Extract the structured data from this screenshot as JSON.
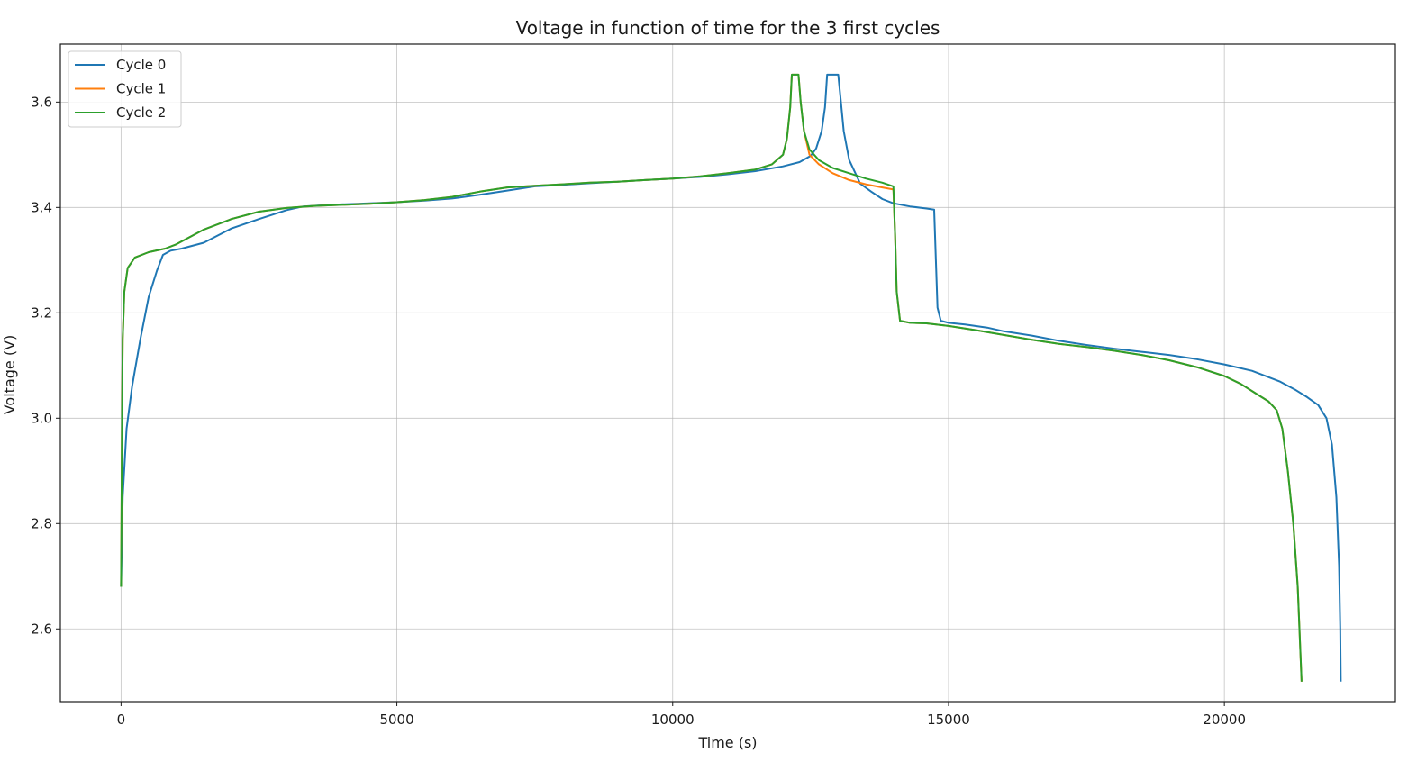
{
  "chart_data": {
    "type": "line",
    "title": "Voltage in function of time for the 3 first cycles",
    "xlabel": "Time (s)",
    "ylabel": "Voltage (V)",
    "xlim": [
      -1100,
      23100
    ],
    "ylim": [
      2.462,
      3.71
    ],
    "xticks": [
      0,
      5000,
      10000,
      15000,
      20000
    ],
    "yticks": [
      2.6,
      2.8,
      3.0,
      3.2,
      3.4,
      3.6
    ],
    "xtick_labels": [
      "0",
      "5000",
      "10000",
      "15000",
      "20000"
    ],
    "ytick_labels": [
      "2.6",
      "2.8",
      "3.0",
      "3.2",
      "3.4",
      "3.6"
    ],
    "grid": true,
    "legend_position": "top-left",
    "series": [
      {
        "name": "Cycle 0",
        "color": "#1f77b4",
        "points": [
          [
            0,
            2.68
          ],
          [
            30,
            2.85
          ],
          [
            100,
            2.98
          ],
          [
            200,
            3.06
          ],
          [
            350,
            3.15
          ],
          [
            500,
            3.23
          ],
          [
            650,
            3.28
          ],
          [
            760,
            3.31
          ],
          [
            900,
            3.318
          ],
          [
            1100,
            3.322
          ],
          [
            1500,
            3.333
          ],
          [
            2000,
            3.36
          ],
          [
            2500,
            3.378
          ],
          [
            3000,
            3.395
          ],
          [
            3300,
            3.402
          ],
          [
            3800,
            3.405
          ],
          [
            4500,
            3.408
          ],
          [
            5000,
            3.41
          ],
          [
            5500,
            3.413
          ],
          [
            6000,
            3.417
          ],
          [
            6500,
            3.424
          ],
          [
            7000,
            3.432
          ],
          [
            7500,
            3.44
          ],
          [
            8000,
            3.443
          ],
          [
            8500,
            3.446
          ],
          [
            9000,
            3.449
          ],
          [
            9500,
            3.452
          ],
          [
            10000,
            3.455
          ],
          [
            10500,
            3.458
          ],
          [
            11000,
            3.463
          ],
          [
            11500,
            3.469
          ],
          [
            12000,
            3.478
          ],
          [
            12300,
            3.486
          ],
          [
            12500,
            3.498
          ],
          [
            12600,
            3.512
          ],
          [
            12700,
            3.545
          ],
          [
            12760,
            3.59
          ],
          [
            12800,
            3.652
          ],
          [
            13000,
            3.652
          ],
          [
            13050,
            3.6
          ],
          [
            13100,
            3.545
          ],
          [
            13200,
            3.49
          ],
          [
            13400,
            3.445
          ],
          [
            13600,
            3.43
          ],
          [
            13800,
            3.416
          ],
          [
            14000,
            3.408
          ],
          [
            14300,
            3.402
          ],
          [
            14600,
            3.398
          ],
          [
            14740,
            3.396
          ],
          [
            14770,
            3.3
          ],
          [
            14800,
            3.21
          ],
          [
            14860,
            3.185
          ],
          [
            15000,
            3.181
          ],
          [
            15300,
            3.178
          ],
          [
            15700,
            3.172
          ],
          [
            16000,
            3.165
          ],
          [
            16500,
            3.157
          ],
          [
            17000,
            3.147
          ],
          [
            17500,
            3.139
          ],
          [
            18000,
            3.132
          ],
          [
            18500,
            3.126
          ],
          [
            19000,
            3.12
          ],
          [
            19500,
            3.112
          ],
          [
            20000,
            3.102
          ],
          [
            20500,
            3.09
          ],
          [
            21000,
            3.07
          ],
          [
            21300,
            3.053
          ],
          [
            21500,
            3.04
          ],
          [
            21700,
            3.025
          ],
          [
            21850,
            3.0
          ],
          [
            21950,
            2.95
          ],
          [
            22030,
            2.85
          ],
          [
            22080,
            2.72
          ],
          [
            22100,
            2.6
          ],
          [
            22110,
            2.5
          ]
        ]
      },
      {
        "name": "Cycle 1",
        "color": "#ff7f0e",
        "points": [
          [
            0,
            2.68
          ],
          [
            15,
            2.95
          ],
          [
            30,
            3.15
          ],
          [
            60,
            3.24
          ],
          [
            120,
            3.285
          ],
          [
            250,
            3.305
          ],
          [
            500,
            3.315
          ],
          [
            800,
            3.322
          ],
          [
            1000,
            3.33
          ],
          [
            1500,
            3.358
          ],
          [
            2000,
            3.378
          ],
          [
            2500,
            3.392
          ],
          [
            3000,
            3.399
          ],
          [
            3500,
            3.403
          ],
          [
            4000,
            3.405
          ],
          [
            4500,
            3.407
          ],
          [
            5000,
            3.41
          ],
          [
            5500,
            3.414
          ],
          [
            6000,
            3.42
          ],
          [
            6500,
            3.43
          ],
          [
            7000,
            3.438
          ],
          [
            7500,
            3.441
          ],
          [
            8000,
            3.444
          ],
          [
            8500,
            3.447
          ],
          [
            9000,
            3.449
          ],
          [
            9500,
            3.452
          ],
          [
            10000,
            3.455
          ],
          [
            10500,
            3.459
          ],
          [
            11000,
            3.465
          ],
          [
            11500,
            3.472
          ],
          [
            11800,
            3.482
          ],
          [
            12000,
            3.5
          ],
          [
            12070,
            3.53
          ],
          [
            12130,
            3.59
          ],
          [
            12160,
            3.652
          ],
          [
            12280,
            3.652
          ],
          [
            12320,
            3.6
          ],
          [
            12380,
            3.545
          ],
          [
            12480,
            3.5
          ],
          [
            12650,
            3.482
          ],
          [
            12900,
            3.465
          ],
          [
            13200,
            3.452
          ],
          [
            13500,
            3.444
          ],
          [
            13800,
            3.438
          ],
          [
            14000,
            3.434
          ],
          [
            14030,
            3.35
          ],
          [
            14060,
            3.24
          ],
          [
            14120,
            3.185
          ],
          [
            14300,
            3.181
          ],
          [
            14600,
            3.18
          ],
          [
            15000,
            3.175
          ],
          [
            15500,
            3.167
          ],
          [
            16000,
            3.158
          ],
          [
            16500,
            3.149
          ],
          [
            17000,
            3.141
          ],
          [
            17500,
            3.135
          ],
          [
            18000,
            3.128
          ],
          [
            18500,
            3.12
          ],
          [
            19000,
            3.11
          ],
          [
            19500,
            3.097
          ],
          [
            20000,
            3.08
          ],
          [
            20300,
            3.065
          ],
          [
            20600,
            3.045
          ],
          [
            20800,
            3.032
          ],
          [
            20950,
            3.015
          ],
          [
            21050,
            2.98
          ],
          [
            21150,
            2.9
          ],
          [
            21250,
            2.8
          ],
          [
            21330,
            2.68
          ],
          [
            21380,
            2.55
          ],
          [
            21400,
            2.5
          ]
        ]
      },
      {
        "name": "Cycle 2",
        "color": "#2ca02c",
        "points": [
          [
            0,
            2.68
          ],
          [
            15,
            2.95
          ],
          [
            30,
            3.15
          ],
          [
            60,
            3.24
          ],
          [
            120,
            3.285
          ],
          [
            250,
            3.305
          ],
          [
            500,
            3.315
          ],
          [
            800,
            3.322
          ],
          [
            1000,
            3.33
          ],
          [
            1500,
            3.358
          ],
          [
            2000,
            3.378
          ],
          [
            2500,
            3.392
          ],
          [
            3000,
            3.399
          ],
          [
            3500,
            3.403
          ],
          [
            4000,
            3.405
          ],
          [
            4500,
            3.407
          ],
          [
            5000,
            3.41
          ],
          [
            5500,
            3.414
          ],
          [
            6000,
            3.42
          ],
          [
            6500,
            3.43
          ],
          [
            7000,
            3.438
          ],
          [
            7500,
            3.441
          ],
          [
            8000,
            3.444
          ],
          [
            8500,
            3.447
          ],
          [
            9000,
            3.449
          ],
          [
            9500,
            3.452
          ],
          [
            10000,
            3.455
          ],
          [
            10500,
            3.459
          ],
          [
            11000,
            3.465
          ],
          [
            11500,
            3.472
          ],
          [
            11800,
            3.482
          ],
          [
            12000,
            3.5
          ],
          [
            12070,
            3.53
          ],
          [
            12130,
            3.59
          ],
          [
            12160,
            3.652
          ],
          [
            12280,
            3.652
          ],
          [
            12320,
            3.6
          ],
          [
            12380,
            3.545
          ],
          [
            12480,
            3.51
          ],
          [
            12650,
            3.49
          ],
          [
            12900,
            3.475
          ],
          [
            13200,
            3.465
          ],
          [
            13500,
            3.455
          ],
          [
            13800,
            3.447
          ],
          [
            14000,
            3.44
          ],
          [
            14030,
            3.35
          ],
          [
            14060,
            3.24
          ],
          [
            14120,
            3.185
          ],
          [
            14300,
            3.181
          ],
          [
            14600,
            3.18
          ],
          [
            15000,
            3.175
          ],
          [
            15500,
            3.167
          ],
          [
            16000,
            3.158
          ],
          [
            16500,
            3.149
          ],
          [
            17000,
            3.141
          ],
          [
            17500,
            3.135
          ],
          [
            18000,
            3.128
          ],
          [
            18500,
            3.12
          ],
          [
            19000,
            3.11
          ],
          [
            19500,
            3.097
          ],
          [
            20000,
            3.08
          ],
          [
            20300,
            3.065
          ],
          [
            20600,
            3.045
          ],
          [
            20800,
            3.032
          ],
          [
            20950,
            3.015
          ],
          [
            21050,
            2.98
          ],
          [
            21150,
            2.9
          ],
          [
            21250,
            2.8
          ],
          [
            21330,
            2.68
          ],
          [
            21380,
            2.55
          ],
          [
            21400,
            2.5
          ]
        ]
      }
    ]
  }
}
